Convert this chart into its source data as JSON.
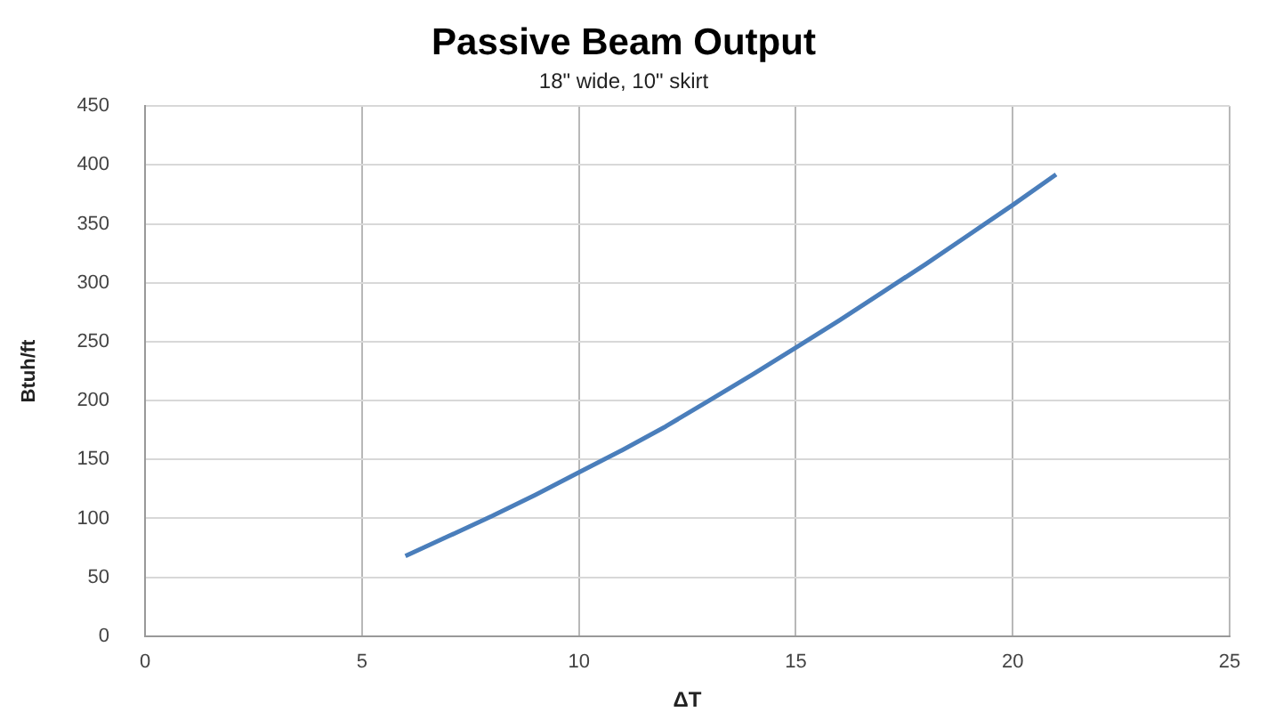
{
  "chart_data": {
    "type": "line",
    "title": "Passive Beam Output",
    "subtitle": "18\" wide, 10\" skirt",
    "xlabel": "ΔT",
    "ylabel": "Btuh/ft",
    "series": [
      {
        "color": "#4a7ebb",
        "x": [
          6,
          7,
          8,
          9,
          10,
          11,
          12,
          13,
          14,
          15,
          16,
          17,
          18,
          19,
          20,
          21
        ],
        "values": [
          68,
          85,
          102,
          120,
          139,
          158,
          178,
          200,
          222,
          245,
          268,
          292,
          316,
          341,
          366,
          392
        ]
      }
    ],
    "xlim": [
      0,
      25
    ],
    "xticks": [
      0,
      5,
      10,
      15,
      20,
      25
    ],
    "ylim": [
      0,
      450
    ],
    "yticks": [
      0,
      50,
      100,
      150,
      200,
      250,
      300,
      350,
      400,
      450
    ],
    "grid": true,
    "legend": false,
    "marker": "none",
    "line_style": "solid"
  }
}
